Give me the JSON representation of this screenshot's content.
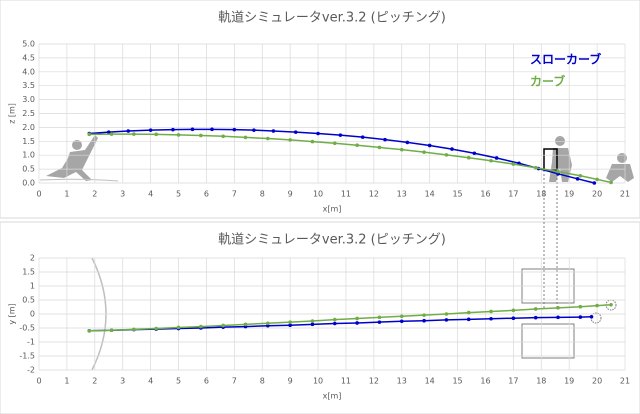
{
  "chart_data": [
    {
      "type": "line",
      "title": "軌道シミュレータver.3.2 (ピッチング)",
      "x_label": "x[m]",
      "y_label": "z [m]",
      "xlim": [
        0,
        21
      ],
      "xticks": [
        0,
        1,
        2,
        3,
        4,
        5,
        6,
        7,
        8,
        9,
        10,
        11,
        12,
        13,
        14,
        15,
        16,
        17,
        18,
        19,
        20,
        21
      ],
      "ylim": [
        0,
        5
      ],
      "yticks": [
        {
          "value": 0,
          "label": "0.0"
        },
        0.5,
        {
          "value": 1,
          "label": "1.0"
        },
        1.5,
        {
          "value": 2,
          "label": "2.0"
        },
        2.5,
        {
          "value": 3,
          "label": "3.0"
        },
        3.5,
        {
          "value": 4,
          "label": "4.0"
        },
        4.5,
        {
          "value": 5,
          "label": "5.0"
        }
      ],
      "grid": true,
      "legend": "top-right",
      "series": [
        {
          "name": "スローカーブ",
          "color": "#0000cc",
          "x": [
            1.8,
            2.5,
            3.2,
            4.0,
            4.8,
            5.5,
            6.2,
            7.0,
            7.7,
            8.4,
            9.2,
            10.0,
            10.8,
            11.6,
            12.4,
            13.2,
            14.0,
            14.8,
            15.6,
            16.4,
            17.2,
            17.9,
            18.6,
            19.3,
            19.9
          ],
          "values": [
            1.78,
            1.83,
            1.87,
            1.9,
            1.92,
            1.93,
            1.93,
            1.92,
            1.9,
            1.87,
            1.83,
            1.78,
            1.72,
            1.65,
            1.56,
            1.46,
            1.35,
            1.22,
            1.07,
            0.9,
            0.71,
            0.52,
            0.33,
            0.15,
            0.0
          ]
        },
        {
          "name": "カーブ",
          "color": "#70ad47",
          "x": [
            1.8,
            2.6,
            3.4,
            4.2,
            5.0,
            5.8,
            6.6,
            7.4,
            8.2,
            9.0,
            9.8,
            10.6,
            11.4,
            12.2,
            13.0,
            13.8,
            14.6,
            15.4,
            16.2,
            17.0,
            17.8,
            18.6,
            19.4,
            20.0,
            20.5
          ],
          "values": [
            1.75,
            1.76,
            1.76,
            1.75,
            1.73,
            1.71,
            1.68,
            1.64,
            1.6,
            1.55,
            1.49,
            1.43,
            1.36,
            1.28,
            1.2,
            1.11,
            1.01,
            0.91,
            0.8,
            0.68,
            0.55,
            0.41,
            0.26,
            0.13,
            0.02
          ]
        }
      ]
    },
    {
      "type": "line",
      "title": "軌道シミュレータver.3.2 (ピッチング)",
      "x_label": "x[m]",
      "y_label": "y [m]",
      "xlim": [
        0,
        21
      ],
      "xticks": [
        0,
        1,
        2,
        3,
        4,
        5,
        6,
        7,
        8,
        9,
        10,
        11,
        12,
        13,
        14,
        15,
        16,
        17,
        18,
        19,
        20,
        21
      ],
      "ylim": [
        -2,
        2
      ],
      "yticks": [
        -2,
        -1.5,
        -1,
        -0.5,
        0,
        0.5,
        1,
        1.5,
        2
      ],
      "grid": true,
      "series": [
        {
          "color": "#0000cc",
          "x": [
            1.8,
            2.6,
            3.4,
            4.2,
            5.0,
            5.8,
            6.6,
            7.4,
            8.2,
            9.0,
            9.8,
            10.6,
            11.4,
            12.2,
            13.0,
            13.8,
            14.6,
            15.4,
            16.2,
            17.0,
            17.8,
            18.6,
            19.4,
            19.8
          ],
          "values": [
            -0.6,
            -0.58,
            -0.56,
            -0.54,
            -0.52,
            -0.5,
            -0.47,
            -0.45,
            -0.42,
            -0.4,
            -0.37,
            -0.34,
            -0.32,
            -0.29,
            -0.26,
            -0.24,
            -0.21,
            -0.19,
            -0.17,
            -0.15,
            -0.13,
            -0.12,
            -0.11,
            -0.1
          ]
        },
        {
          "color": "#70ad47",
          "x": [
            1.8,
            2.6,
            3.4,
            4.2,
            5.0,
            5.8,
            6.6,
            7.4,
            8.2,
            9.0,
            9.8,
            10.6,
            11.4,
            12.2,
            13.0,
            13.8,
            14.6,
            15.4,
            16.2,
            17.0,
            17.8,
            18.6,
            19.4,
            20.0,
            20.5
          ],
          "values": [
            -0.6,
            -0.58,
            -0.55,
            -0.52,
            -0.48,
            -0.45,
            -0.41,
            -0.37,
            -0.33,
            -0.29,
            -0.25,
            -0.2,
            -0.16,
            -0.12,
            -0.08,
            -0.04,
            0.0,
            0.05,
            0.09,
            0.13,
            0.18,
            0.22,
            0.26,
            0.3,
            0.33
          ]
        }
      ]
    }
  ]
}
